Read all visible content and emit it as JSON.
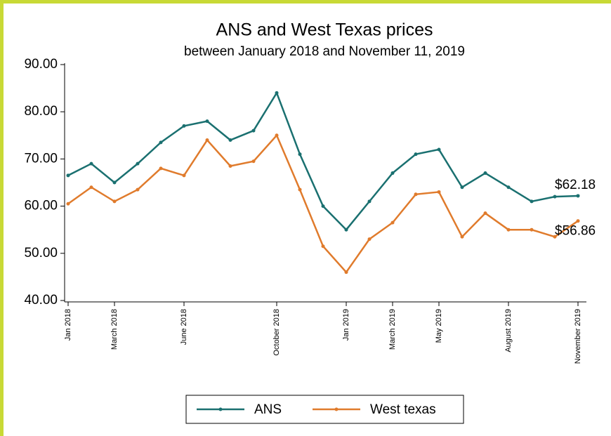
{
  "chart_data": {
    "type": "line",
    "title": "ANS and West Texas prices",
    "subtitle": "between January 2018 and November 11, 2019",
    "x": [
      "2018-01",
      "2018-02",
      "2018-03",
      "2018-04",
      "2018-05",
      "2018-06",
      "2018-07",
      "2018-08",
      "2018-09",
      "2018-10",
      "2018-11",
      "2018-12",
      "2019-01",
      "2019-02",
      "2019-03",
      "2019-04",
      "2019-05",
      "2019-06",
      "2019-07",
      "2019-08",
      "2019-09",
      "2019-10",
      "2019-11"
    ],
    "series": [
      {
        "name": "ANS",
        "color": "#1a7070",
        "values": [
          66.5,
          69,
          65,
          69,
          73.5,
          77,
          78,
          74,
          76,
          84,
          71,
          60,
          55,
          61,
          67,
          71,
          72,
          64,
          67,
          64,
          61,
          62,
          62.18
        ]
      },
      {
        "name": "West texas",
        "color": "#e07b2c",
        "values": [
          60.5,
          64,
          61,
          63.5,
          68,
          66.5,
          74,
          68.5,
          69.5,
          75,
          63.5,
          51.5,
          46,
          53,
          56.5,
          62.5,
          63,
          53.5,
          58.5,
          55,
          55,
          53.5,
          56.86
        ]
      }
    ],
    "annotations": [
      "$62.18",
      "$56.86"
    ],
    "ylim": [
      40,
      90
    ],
    "yticks": [
      {
        "value": 40,
        "label": "40.00"
      },
      {
        "value": 50,
        "label": "50.00"
      },
      {
        "value": 60,
        "label": "60.00"
      },
      {
        "value": 70,
        "label": "70.00"
      },
      {
        "value": 80,
        "label": "80.00"
      },
      {
        "value": 90,
        "label": "90.00"
      }
    ],
    "xticks": [
      {
        "value": "2018-01",
        "label": "Jan 2018"
      },
      {
        "value": "2018-03",
        "label": "March 2018"
      },
      {
        "value": "2018-06",
        "label": "June 2018"
      },
      {
        "value": "2018-10",
        "label": "October 2018"
      },
      {
        "value": "2019-01",
        "label": "Jan 2019"
      },
      {
        "value": "2019-03",
        "label": "March 2019"
      },
      {
        "value": "2019-05",
        "label": "May 2019"
      },
      {
        "value": "2019-08",
        "label": "August 2019"
      },
      {
        "value": "2019-11",
        "label": "November 2019"
      }
    ],
    "legend": "bottom"
  }
}
